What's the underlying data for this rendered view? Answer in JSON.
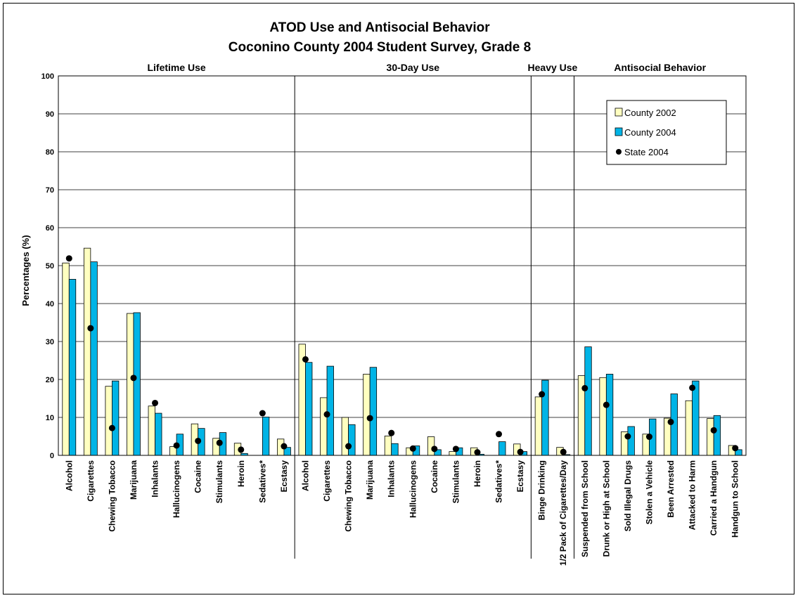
{
  "chart_data": {
    "type": "bar",
    "title": "ATOD Use and Antisocial Behavior",
    "subtitle": "Coconino County 2004 Student Survey, Grade 8",
    "ylabel": "Percentages (%)",
    "ylim": [
      0,
      100
    ],
    "yticks": [
      0,
      10,
      20,
      30,
      40,
      50,
      60,
      70,
      80,
      90,
      100
    ],
    "grid": true,
    "legend_position": "top-right",
    "sections": [
      {
        "label": "Lifetime Use",
        "count": 11
      },
      {
        "label": "30-Day Use",
        "count": 11
      },
      {
        "label": "Heavy Use",
        "count": 2
      },
      {
        "label": "Antisocial Behavior",
        "count": 8
      }
    ],
    "categories": [
      "Alcohol",
      "Cigarettes",
      "Chewing Tobacco",
      "Marijuana",
      "Inhalants",
      "Hallucinogens",
      "Cocaine",
      "Stimulants",
      "Heroin",
      "Sedatives*",
      "Ecstasy",
      "Alcohol",
      "Cigarettes",
      "Chewing Tobacco",
      "Marijuana",
      "Inhalants",
      "Hallucinogens",
      "Cocaine",
      "Stimulants",
      "Heroin",
      "Sedatives*",
      "Ecstasy",
      "Binge Drinking",
      "1/2 Pack of Cigarettes/Day",
      "Suspended from School",
      "Drunk or High at School",
      "Sold Illegal Drugs",
      "Stolen a Vehicle",
      "Been Arrested",
      "Attacked to Harm",
      "Carried a Handgun",
      "Handgun to School"
    ],
    "series": [
      {
        "name": "County 2002",
        "kind": "bar",
        "color": "#ffffc0",
        "values": [
          50.7,
          54.6,
          18.2,
          37.4,
          13.0,
          2.3,
          8.3,
          4.5,
          3.2,
          null,
          4.3,
          29.3,
          15.2,
          10.0,
          21.4,
          5.1,
          2.0,
          4.9,
          1.0,
          2.0,
          null,
          3.0,
          15.4,
          2.1,
          21.0,
          20.5,
          6.2,
          5.6,
          9.8,
          14.4,
          9.7,
          2.6
        ]
      },
      {
        "name": "County 2004",
        "kind": "bar",
        "color": "#00b4e6",
        "values": [
          46.4,
          51.0,
          19.6,
          37.6,
          11.1,
          5.6,
          7.1,
          6.0,
          0.5,
          10.1,
          2.1,
          24.5,
          23.5,
          8.1,
          23.2,
          3.1,
          2.5,
          1.5,
          2.0,
          0.3,
          3.6,
          1.0,
          19.8,
          0.2,
          28.6,
          21.4,
          7.6,
          9.6,
          16.2,
          19.6,
          10.5,
          1.5
        ]
      },
      {
        "name": "State 2004",
        "kind": "point",
        "color": "#000000",
        "values": [
          51.9,
          33.5,
          7.2,
          20.4,
          13.8,
          2.6,
          3.8,
          3.3,
          1.5,
          11.1,
          2.4,
          25.3,
          10.8,
          2.4,
          9.8,
          5.9,
          1.8,
          1.7,
          1.7,
          0.8,
          5.6,
          0.9,
          16.1,
          0.9,
          17.7,
          13.3,
          5.0,
          4.9,
          8.8,
          17.8,
          6.6,
          1.9
        ]
      }
    ]
  }
}
